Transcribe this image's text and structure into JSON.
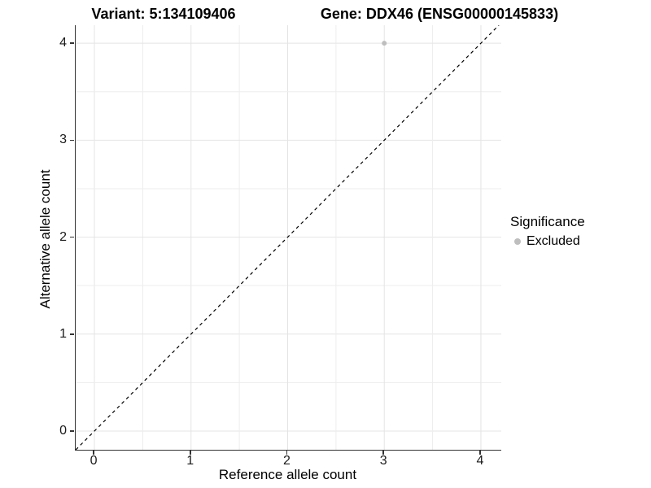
{
  "chart_data": {
    "type": "scatter",
    "title_left": "Variant: 5:134109406",
    "title_right": "Gene: DDX46 (ENSG00000145833)",
    "xlabel": "Reference allele count",
    "ylabel": "Alternative allele count",
    "x_ticks": [
      0,
      1,
      2,
      3,
      4
    ],
    "y_ticks": [
      0,
      1,
      2,
      3,
      4
    ],
    "xlim": [
      -0.194,
      4.211
    ],
    "ylim": [
      -0.193,
      4.186
    ],
    "minor_step": 0.5,
    "grid": "on",
    "legend_position": "right",
    "series": [
      {
        "name": "Excluded",
        "color": "#BEBEBE",
        "points": [
          {
            "x": 3,
            "y": 4
          }
        ]
      }
    ],
    "reference_line": {
      "kind": "identity y=x",
      "style": "dashed",
      "color": "#000000"
    }
  },
  "legend": {
    "title": "Significance",
    "items": [
      {
        "label": "Excluded",
        "color": "#BEBEBE"
      }
    ]
  },
  "colors": {
    "background": "#FFFFFF",
    "axis_line": "#333333",
    "tick": "#333333",
    "text": "#000000",
    "grid_major": "#E4E4E4",
    "grid_minor": "#EDEDED",
    "point": "#BEBEBE",
    "reference_line": "#000000"
  }
}
